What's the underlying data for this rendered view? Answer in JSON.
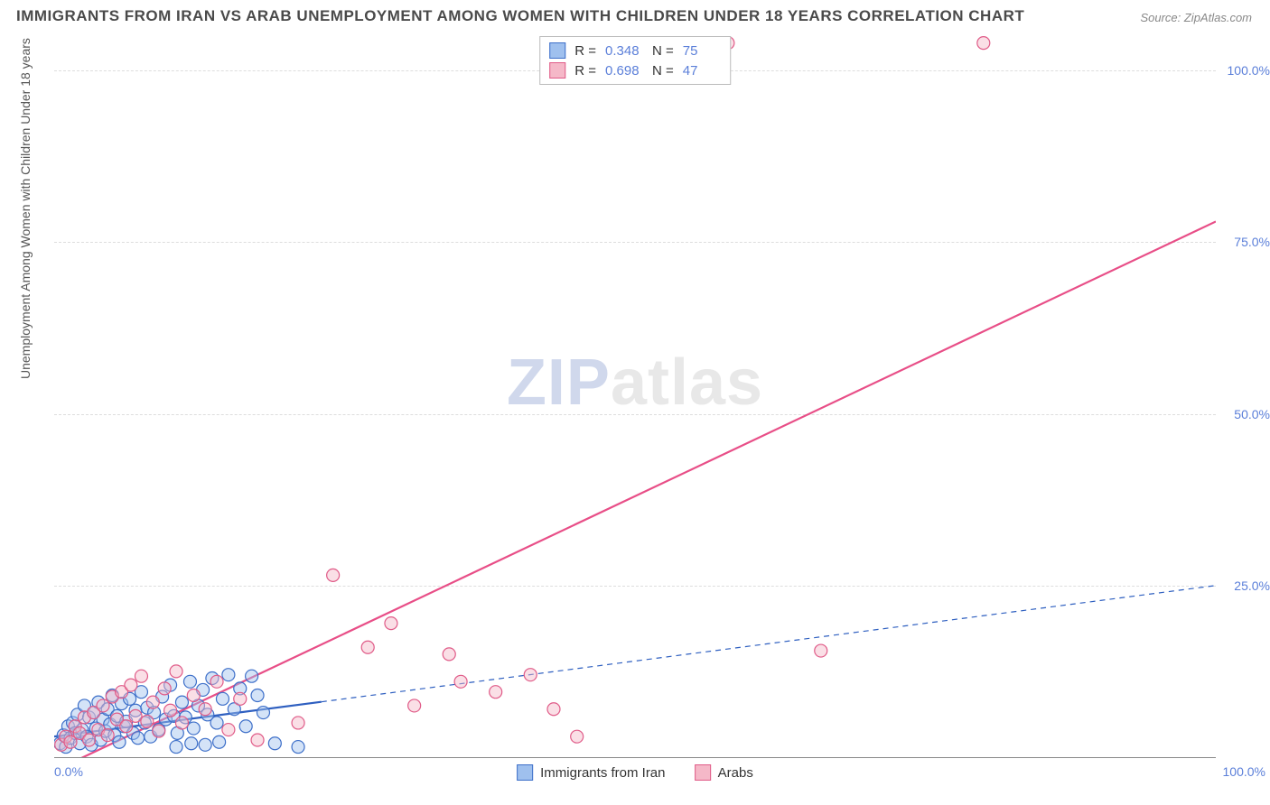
{
  "title": "IMMIGRANTS FROM IRAN VS ARAB UNEMPLOYMENT AMONG WOMEN WITH CHILDREN UNDER 18 YEARS CORRELATION CHART",
  "source": "Source: ZipAtlas.com",
  "y_axis_label": "Unemployment Among Women with Children Under 18 years",
  "watermark_zip": "ZIP",
  "watermark_atlas": "atlas",
  "chart": {
    "type": "scatter",
    "xlim": [
      0,
      100
    ],
    "ylim": [
      0,
      105
    ],
    "y_ticks": [
      25,
      50,
      75,
      100
    ],
    "y_tick_labels": [
      "25.0%",
      "50.0%",
      "75.0%",
      "100.0%"
    ],
    "x_tick_left": "0.0%",
    "x_tick_right": "100.0%",
    "grid_color": "#dddddd",
    "axis_color": "#888888",
    "background_color": "#ffffff",
    "marker_radius": 7,
    "marker_stroke_width": 1.2,
    "series": [
      {
        "name": "Immigrants from Iran",
        "fill": "#9fc0ee",
        "stroke": "#3d6fc9",
        "fill_opacity": 0.45,
        "R": "0.348",
        "N": "75",
        "trend": {
          "x1": 0,
          "y1": 3.0,
          "x2": 100,
          "y2": 25.0,
          "solid_until_x": 23,
          "color": "#2e5fc0",
          "width": 2.2
        },
        "points": [
          [
            0.5,
            2.0
          ],
          [
            0.8,
            3.2
          ],
          [
            1.0,
            1.5
          ],
          [
            1.2,
            4.5
          ],
          [
            1.4,
            2.8
          ],
          [
            1.6,
            5.0
          ],
          [
            1.8,
            3.5
          ],
          [
            2.0,
            6.2
          ],
          [
            2.2,
            2.0
          ],
          [
            2.4,
            4.0
          ],
          [
            2.6,
            7.5
          ],
          [
            2.8,
            3.0
          ],
          [
            3.0,
            5.8
          ],
          [
            3.2,
            1.8
          ],
          [
            3.4,
            6.5
          ],
          [
            3.6,
            4.2
          ],
          [
            3.8,
            8.0
          ],
          [
            4.0,
            2.5
          ],
          [
            4.2,
            5.5
          ],
          [
            4.4,
            3.8
          ],
          [
            4.6,
            7.0
          ],
          [
            4.8,
            4.8
          ],
          [
            5.0,
            9.0
          ],
          [
            5.2,
            3.2
          ],
          [
            5.4,
            6.0
          ],
          [
            5.6,
            2.2
          ],
          [
            5.8,
            7.8
          ],
          [
            6.0,
            4.5
          ],
          [
            6.2,
            5.2
          ],
          [
            6.5,
            8.5
          ],
          [
            6.8,
            3.5
          ],
          [
            7.0,
            6.8
          ],
          [
            7.2,
            2.8
          ],
          [
            7.5,
            9.5
          ],
          [
            7.8,
            5.0
          ],
          [
            8.0,
            7.2
          ],
          [
            8.3,
            3.0
          ],
          [
            8.6,
            6.5
          ],
          [
            9.0,
            4.0
          ],
          [
            9.3,
            8.8
          ],
          [
            9.6,
            5.5
          ],
          [
            10.0,
            10.5
          ],
          [
            10.3,
            6.0
          ],
          [
            10.6,
            3.5
          ],
          [
            11.0,
            8.0
          ],
          [
            11.3,
            5.8
          ],
          [
            11.7,
            11.0
          ],
          [
            12.0,
            4.2
          ],
          [
            12.4,
            7.5
          ],
          [
            12.8,
            9.8
          ],
          [
            13.2,
            6.2
          ],
          [
            13.6,
            11.5
          ],
          [
            14.0,
            5.0
          ],
          [
            14.5,
            8.5
          ],
          [
            15.0,
            12.0
          ],
          [
            15.5,
            7.0
          ],
          [
            16.0,
            10.0
          ],
          [
            16.5,
            4.5
          ],
          [
            17.0,
            11.8
          ],
          [
            17.5,
            9.0
          ],
          [
            18.0,
            6.5
          ],
          [
            10.5,
            1.5
          ],
          [
            11.8,
            2.0
          ],
          [
            13.0,
            1.8
          ],
          [
            14.2,
            2.2
          ],
          [
            19.0,
            2.0
          ],
          [
            21.0,
            1.5
          ]
        ]
      },
      {
        "name": "Arabs",
        "fill": "#f5b8c8",
        "stroke": "#e05b88",
        "fill_opacity": 0.45,
        "R": "0.698",
        "N": "47",
        "trend": {
          "x1": 0,
          "y1": -2.0,
          "x2": 100,
          "y2": 78.0,
          "solid_until_x": 100,
          "color": "#e84e87",
          "width": 2.2
        },
        "points": [
          [
            0.6,
            1.8
          ],
          [
            1.0,
            3.0
          ],
          [
            1.4,
            2.2
          ],
          [
            1.8,
            4.5
          ],
          [
            2.2,
            3.5
          ],
          [
            2.6,
            5.8
          ],
          [
            3.0,
            2.5
          ],
          [
            3.4,
            6.5
          ],
          [
            3.8,
            4.0
          ],
          [
            4.2,
            7.5
          ],
          [
            4.6,
            3.2
          ],
          [
            5.0,
            8.8
          ],
          [
            5.4,
            5.5
          ],
          [
            5.8,
            9.5
          ],
          [
            6.2,
            4.5
          ],
          [
            6.6,
            10.5
          ],
          [
            7.0,
            6.0
          ],
          [
            7.5,
            11.8
          ],
          [
            8.0,
            5.2
          ],
          [
            8.5,
            8.0
          ],
          [
            9.0,
            3.8
          ],
          [
            9.5,
            10.0
          ],
          [
            10.0,
            6.8
          ],
          [
            10.5,
            12.5
          ],
          [
            11.0,
            5.0
          ],
          [
            12.0,
            9.0
          ],
          [
            13.0,
            7.0
          ],
          [
            14.0,
            11.0
          ],
          [
            15.0,
            4.0
          ],
          [
            16.0,
            8.5
          ],
          [
            17.5,
            2.5
          ],
          [
            21.0,
            5.0
          ],
          [
            24.0,
            26.5
          ],
          [
            27.0,
            16.0
          ],
          [
            29.0,
            19.5
          ],
          [
            31.0,
            7.5
          ],
          [
            34.0,
            15.0
          ],
          [
            35.0,
            11.0
          ],
          [
            38.0,
            9.5
          ],
          [
            41.0,
            12.0
          ],
          [
            43.0,
            7.0
          ],
          [
            45.0,
            3.0
          ],
          [
            58.0,
            104.0
          ],
          [
            66.0,
            15.5
          ],
          [
            80.0,
            104.0
          ]
        ]
      }
    ]
  },
  "legend_top_prefix_R": "R =",
  "legend_top_prefix_N": "N =",
  "legend_bottom": [
    {
      "label": "Immigrants from Iran",
      "fill": "#9fc0ee",
      "stroke": "#3d6fc9"
    },
    {
      "label": "Arabs",
      "fill": "#f5b8c8",
      "stroke": "#e05b88"
    }
  ],
  "colors": {
    "title": "#4a4a4a",
    "source": "#888888",
    "tick_label": "#5b7fd9",
    "axis_label": "#555555"
  }
}
